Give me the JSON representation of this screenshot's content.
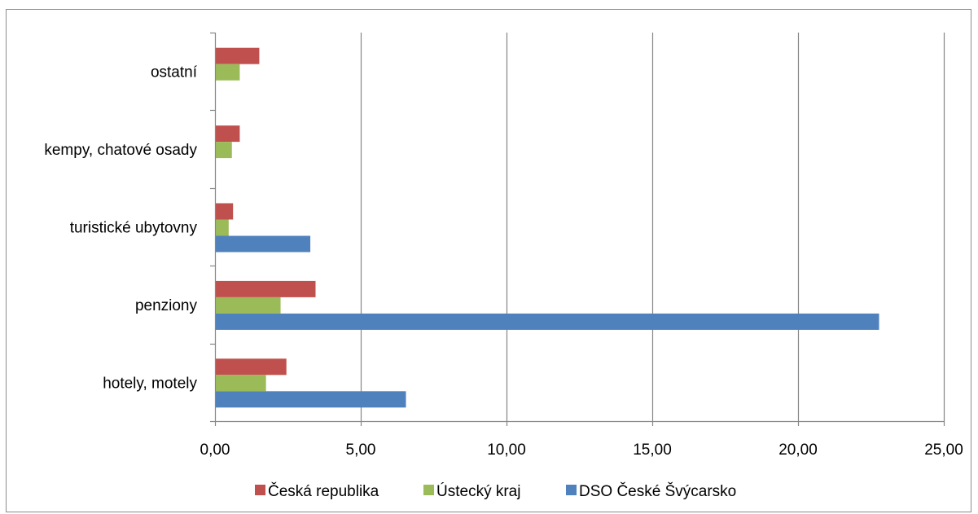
{
  "chart_data": {
    "type": "bar",
    "orientation": "horizontal",
    "categories": [
      "hotely, motely",
      "penziony",
      "turistické ubytovny",
      "kempy, chatové osady",
      "ostatní"
    ],
    "series": [
      {
        "name": "Česká republika",
        "color": "#c0504d",
        "values": [
          2.45,
          3.45,
          0.62,
          0.85,
          1.52
        ]
      },
      {
        "name": "Ústecký kraj",
        "color": "#9bbb59",
        "values": [
          1.75,
          2.25,
          0.47,
          0.58,
          0.85
        ]
      },
      {
        "name": "DSO České Švýcarsko",
        "color": "#4f81bd",
        "values": [
          6.55,
          22.78,
          3.27,
          0,
          0
        ]
      }
    ],
    "xlim": [
      0,
      25
    ],
    "xticks": [
      "0,00",
      "5,00",
      "10,00",
      "15,00",
      "20,00",
      "25,00"
    ],
    "xtick_values": [
      0,
      5,
      10,
      15,
      20,
      25
    ],
    "grid": true,
    "legend_position": "bottom"
  }
}
